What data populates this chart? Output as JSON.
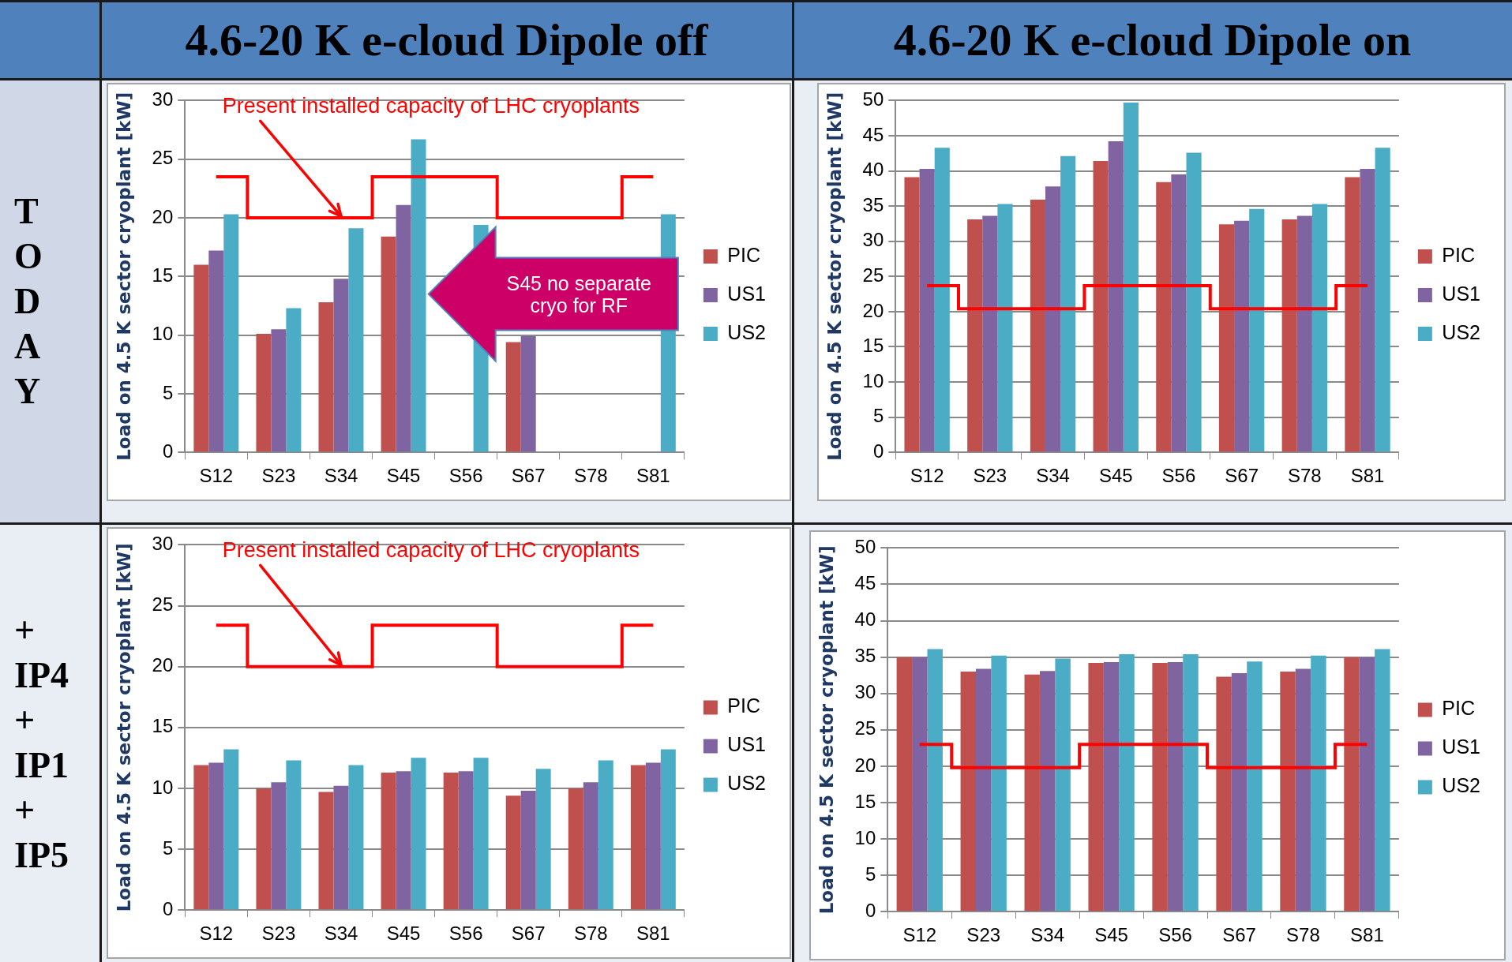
{
  "chart_data": [
    {
      "type": "bar",
      "title": "4.6-20 K e-cloud Dipole off",
      "ylabel": "Load on 4.5 K sector cryoplant [kW]",
      "categories": [
        "S12",
        "S23",
        "S34",
        "S45",
        "S56",
        "S67",
        "S78",
        "S81"
      ],
      "series": [
        {
          "name": "PIC",
          "color": "#c0504d",
          "values": [
            16.0,
            10.1,
            12.8,
            18.4,
            null,
            9.4,
            null,
            null
          ]
        },
        {
          "name": "US1",
          "color": "#8064a2",
          "values": [
            17.2,
            10.5,
            14.8,
            21.1,
            null,
            9.9,
            null,
            null
          ]
        },
        {
          "name": "US2",
          "color": "#4bacc6",
          "values": [
            20.3,
            12.3,
            19.1,
            26.7,
            19.4,
            null,
            null,
            20.3
          ]
        },
        {
          "type": "step",
          "color": "#ff0000",
          "values": [
            23.5,
            20.0,
            20.0,
            23.5,
            23.5,
            20.0,
            20.0,
            23.5
          ]
        }
      ],
      "ylim": [
        0,
        30
      ],
      "yticks": [
        0,
        5,
        10,
        15,
        20,
        25,
        30
      ],
      "grid": "y",
      "legend": "right",
      "annotations": [
        "TODAY",
        {
          "text": "Present installed capacity of LHC cryoplants",
          "x": "S34",
          "y": 20
        },
        "S45 no separate cryo for RF"
      ]
    },
    {
      "type": "bar",
      "title": "4.6-20 K e-cloud Dipole on",
      "ylabel": "Load on 4.5 K sector cryoplant [kW]",
      "categories": [
        "S12",
        "S23",
        "S34",
        "S45",
        "S56",
        "S67",
        "S78",
        "S81"
      ],
      "series": [
        {
          "name": "PIC",
          "color": "#c0504d",
          "values": [
            39.1,
            33.1,
            35.9,
            41.4,
            38.4,
            32.4,
            33.1,
            39.1
          ]
        },
        {
          "name": "US1",
          "color": "#8064a2",
          "values": [
            40.3,
            33.6,
            37.8,
            44.2,
            39.5,
            32.9,
            33.6,
            40.3
          ]
        },
        {
          "name": "US2",
          "color": "#4bacc6",
          "values": [
            43.3,
            35.3,
            42.1,
            49.7,
            42.6,
            34.6,
            35.3,
            43.3
          ]
        },
        {
          "type": "step",
          "color": "#ff0000",
          "values": [
            23.7,
            20.4,
            20.4,
            23.7,
            23.7,
            20.4,
            20.4,
            23.7
          ]
        }
      ],
      "ylim": [
        0,
        50
      ],
      "yticks": [
        0,
        5,
        10,
        15,
        20,
        25,
        30,
        35,
        40,
        45,
        50
      ],
      "grid": "y",
      "legend": "right"
    },
    {
      "type": "bar",
      "ylabel": "Load on 4.5 K sector cryoplant [kW]",
      "categories": [
        "S12",
        "S23",
        "S34",
        "S45",
        "S56",
        "S67",
        "S78",
        "S81"
      ],
      "series": [
        {
          "name": "PIC",
          "color": "#c0504d",
          "values": [
            11.9,
            10.0,
            9.7,
            11.3,
            11.3,
            9.4,
            10.0,
            11.9
          ]
        },
        {
          "name": "US1",
          "color": "#8064a2",
          "values": [
            12.1,
            10.5,
            10.2,
            11.4,
            11.4,
            9.8,
            10.5,
            12.1
          ]
        },
        {
          "name": "US2",
          "color": "#4bacc6",
          "values": [
            13.2,
            12.3,
            11.9,
            12.5,
            12.5,
            11.6,
            12.3,
            13.2
          ]
        },
        {
          "type": "step",
          "color": "#ff0000",
          "values": [
            23.4,
            20.0,
            20.0,
            23.4,
            23.4,
            20.0,
            20.0,
            23.4
          ]
        }
      ],
      "ylim": [
        0,
        30
      ],
      "yticks": [
        0,
        5,
        10,
        15,
        20,
        25,
        30
      ],
      "grid": "y",
      "legend": "right",
      "annotations": [
        "+ IP4 + IP1 + IP5",
        {
          "text": "Present installed capacity of LHC cryoplants",
          "x": "S34",
          "y": 20
        }
      ]
    },
    {
      "type": "bar",
      "ylabel": "Load on 4.5 K sector cryoplant [kW]",
      "categories": [
        "S12",
        "S23",
        "S34",
        "S45",
        "S56",
        "S67",
        "S78",
        "S81"
      ],
      "series": [
        {
          "name": "PIC",
          "color": "#c0504d",
          "values": [
            35.0,
            33.0,
            32.6,
            34.2,
            34.2,
            32.3,
            33.0,
            35.0
          ]
        },
        {
          "name": "US1",
          "color": "#8064a2",
          "values": [
            35.0,
            33.4,
            33.1,
            34.3,
            34.3,
            32.8,
            33.4,
            35.0
          ]
        },
        {
          "name": "US2",
          "color": "#4bacc6",
          "values": [
            36.1,
            35.2,
            34.8,
            35.4,
            35.4,
            34.4,
            35.2,
            36.1
          ]
        },
        {
          "type": "step",
          "color": "#ff0000",
          "values": [
            23.0,
            19.8,
            19.8,
            23.0,
            23.0,
            19.8,
            19.8,
            23.0
          ]
        }
      ],
      "ylim": [
        0,
        50
      ],
      "yticks": [
        0,
        5,
        10,
        15,
        20,
        25,
        30,
        35,
        40,
        45,
        50
      ],
      "grid": "y",
      "legend": "right"
    }
  ]
}
